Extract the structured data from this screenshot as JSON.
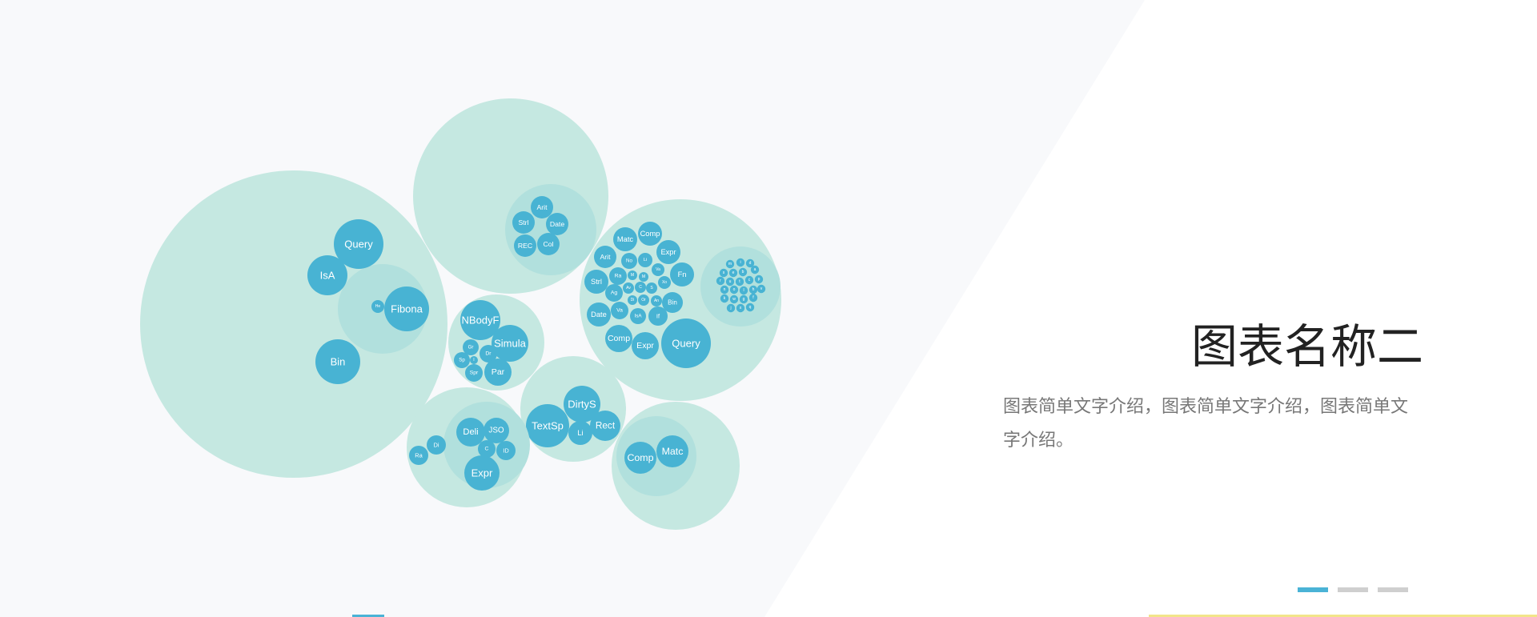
{
  "slide": {
    "title": "图表名称二",
    "description": "图表简单文字介绍，图表简单文字介绍，图表简单文字介绍。"
  },
  "colors": {
    "background_light": "#f8f9fb",
    "group_fill": "#c5e8e1",
    "inner_group_fill": "#b1e0dd",
    "leaf_fill": "#48b3d3",
    "leaf_text": "#ffffff",
    "pager_active": "#4ab3d6",
    "pager_inactive": "#cfcfcf"
  },
  "pager": {
    "count": 3,
    "active_index": 0
  },
  "chart_data": {
    "type": "circle-packing",
    "title": "",
    "groups": [
      {
        "name": "group-1",
        "leaves": [
          "Query",
          "IsA",
          "Bin"
        ],
        "subgroups": [
          {
            "name": "group-1-sub",
            "leaves": [
              "He",
              "Fibona"
            ]
          }
        ]
      },
      {
        "name": "group-2",
        "leaves": [],
        "subgroups": [
          {
            "name": "group-2-sub",
            "leaves": [
              "Arit",
              "Strl",
              "Date",
              "REC",
              "Col"
            ]
          }
        ]
      },
      {
        "name": "group-3",
        "leaves": [
          "NBodyF",
          "Gr",
          "Dr",
          "Simula",
          "Sp",
          "I",
          "Spr",
          "Par"
        ],
        "subgroups": []
      },
      {
        "name": "group-4",
        "leaves": [
          "Matc",
          "Comp",
          "Expr",
          "Arit",
          "No",
          "Li",
          "Fn",
          "Va",
          "Ra",
          "M",
          "M",
          "Strl",
          "Xo",
          "Ag",
          "Av",
          "C",
          "S",
          "Bin",
          "Di",
          "Or",
          "An",
          "Date",
          "Va",
          "IsA",
          "If",
          "Comp",
          "Expr",
          "Query"
        ],
        "subgroups": [
          {
            "name": "group-4-sub",
            "leaves": [
              "m",
              "i",
              "d",
              "s",
              "e",
              "b",
              "a",
              "r",
              "u",
              "t",
              "c",
              "p",
              "n",
              "o",
              "l",
              "h",
              "v",
              "k",
              "w",
              "g",
              "f",
              "j",
              "x",
              "q"
            ]
          }
        ]
      },
      {
        "name": "group-5",
        "leaves": [
          "DirtyS",
          "TextSp",
          "Li",
          "Rect"
        ],
        "subgroups": []
      },
      {
        "name": "group-6",
        "leaves": [
          "Ra",
          "Di"
        ],
        "subgroups": [
          {
            "name": "group-6-sub",
            "leaves": [
              "Deli",
              "JSO",
              "C",
              "ID",
              "Expr"
            ]
          }
        ]
      },
      {
        "name": "group-7",
        "leaves": [],
        "subgroups": [
          {
            "name": "group-7-sub",
            "leaves": [
              "Comp",
              "Matc"
            ]
          }
        ]
      }
    ]
  }
}
